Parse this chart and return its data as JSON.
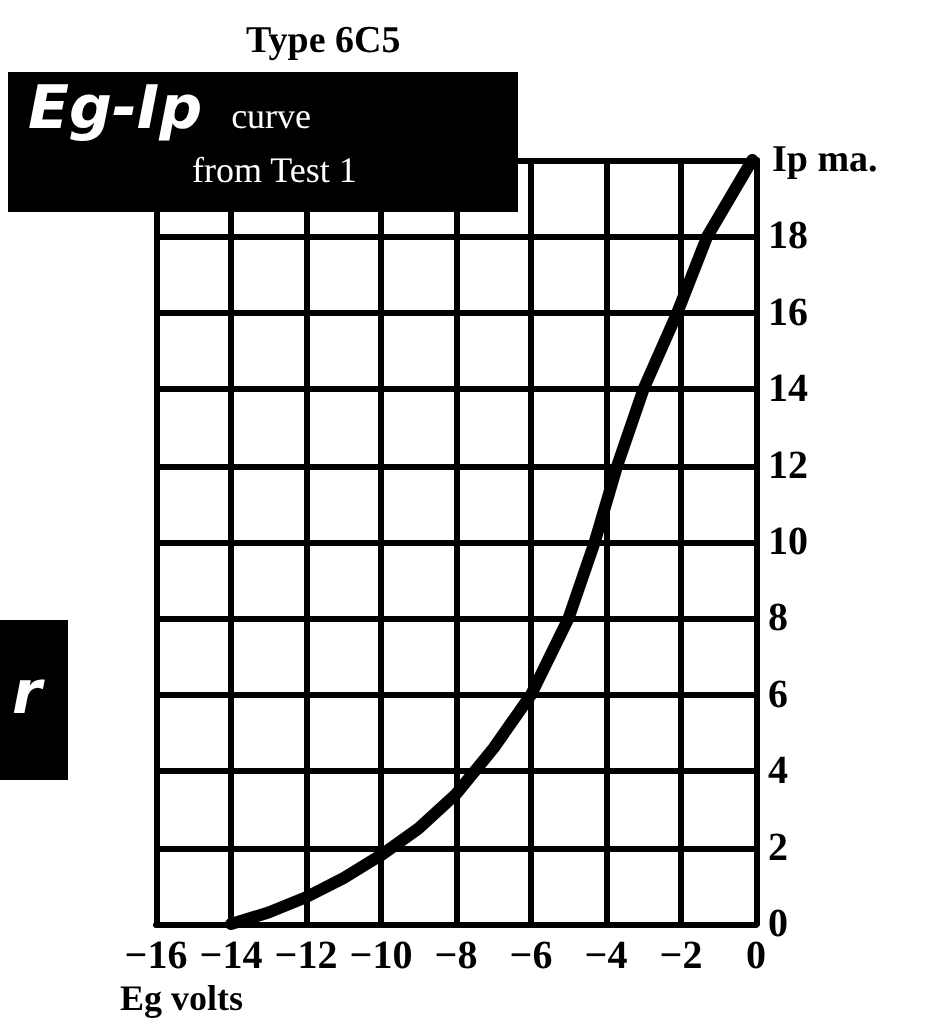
{
  "chart_data": {
    "type": "line",
    "title": "Type 6C5",
    "xlabel": "Eg volts",
    "ylabel": "Ip ma.",
    "annotations": [
      "Eg-Ip curve from Test 1",
      "r"
    ],
    "x": [
      -14,
      -13,
      -12,
      -11,
      -10,
      -9,
      -8,
      -7,
      -6,
      -5,
      -4.3,
      -3.7,
      -3,
      -2.1,
      -1.3,
      -0.1
    ],
    "series": [
      {
        "color": "#000000",
        "values": [
          0,
          0.3,
          0.7,
          1.2,
          1.8,
          2.5,
          3.4,
          4.6,
          6,
          8,
          10,
          12,
          14,
          16,
          18,
          20
        ]
      }
    ],
    "xlim": [
      -16,
      0
    ],
    "xticks": [
      -16,
      -14,
      -12,
      -10,
      -8,
      -6,
      -4,
      -2,
      0
    ],
    "ylim": [
      0,
      20
    ],
    "yticks": [
      0,
      2,
      4,
      6,
      8,
      10,
      12,
      14,
      16,
      18,
      {
        "value": 20,
        "label": null
      }
    ],
    "grid": true,
    "marker": "none",
    "line_style": "solid"
  }
}
